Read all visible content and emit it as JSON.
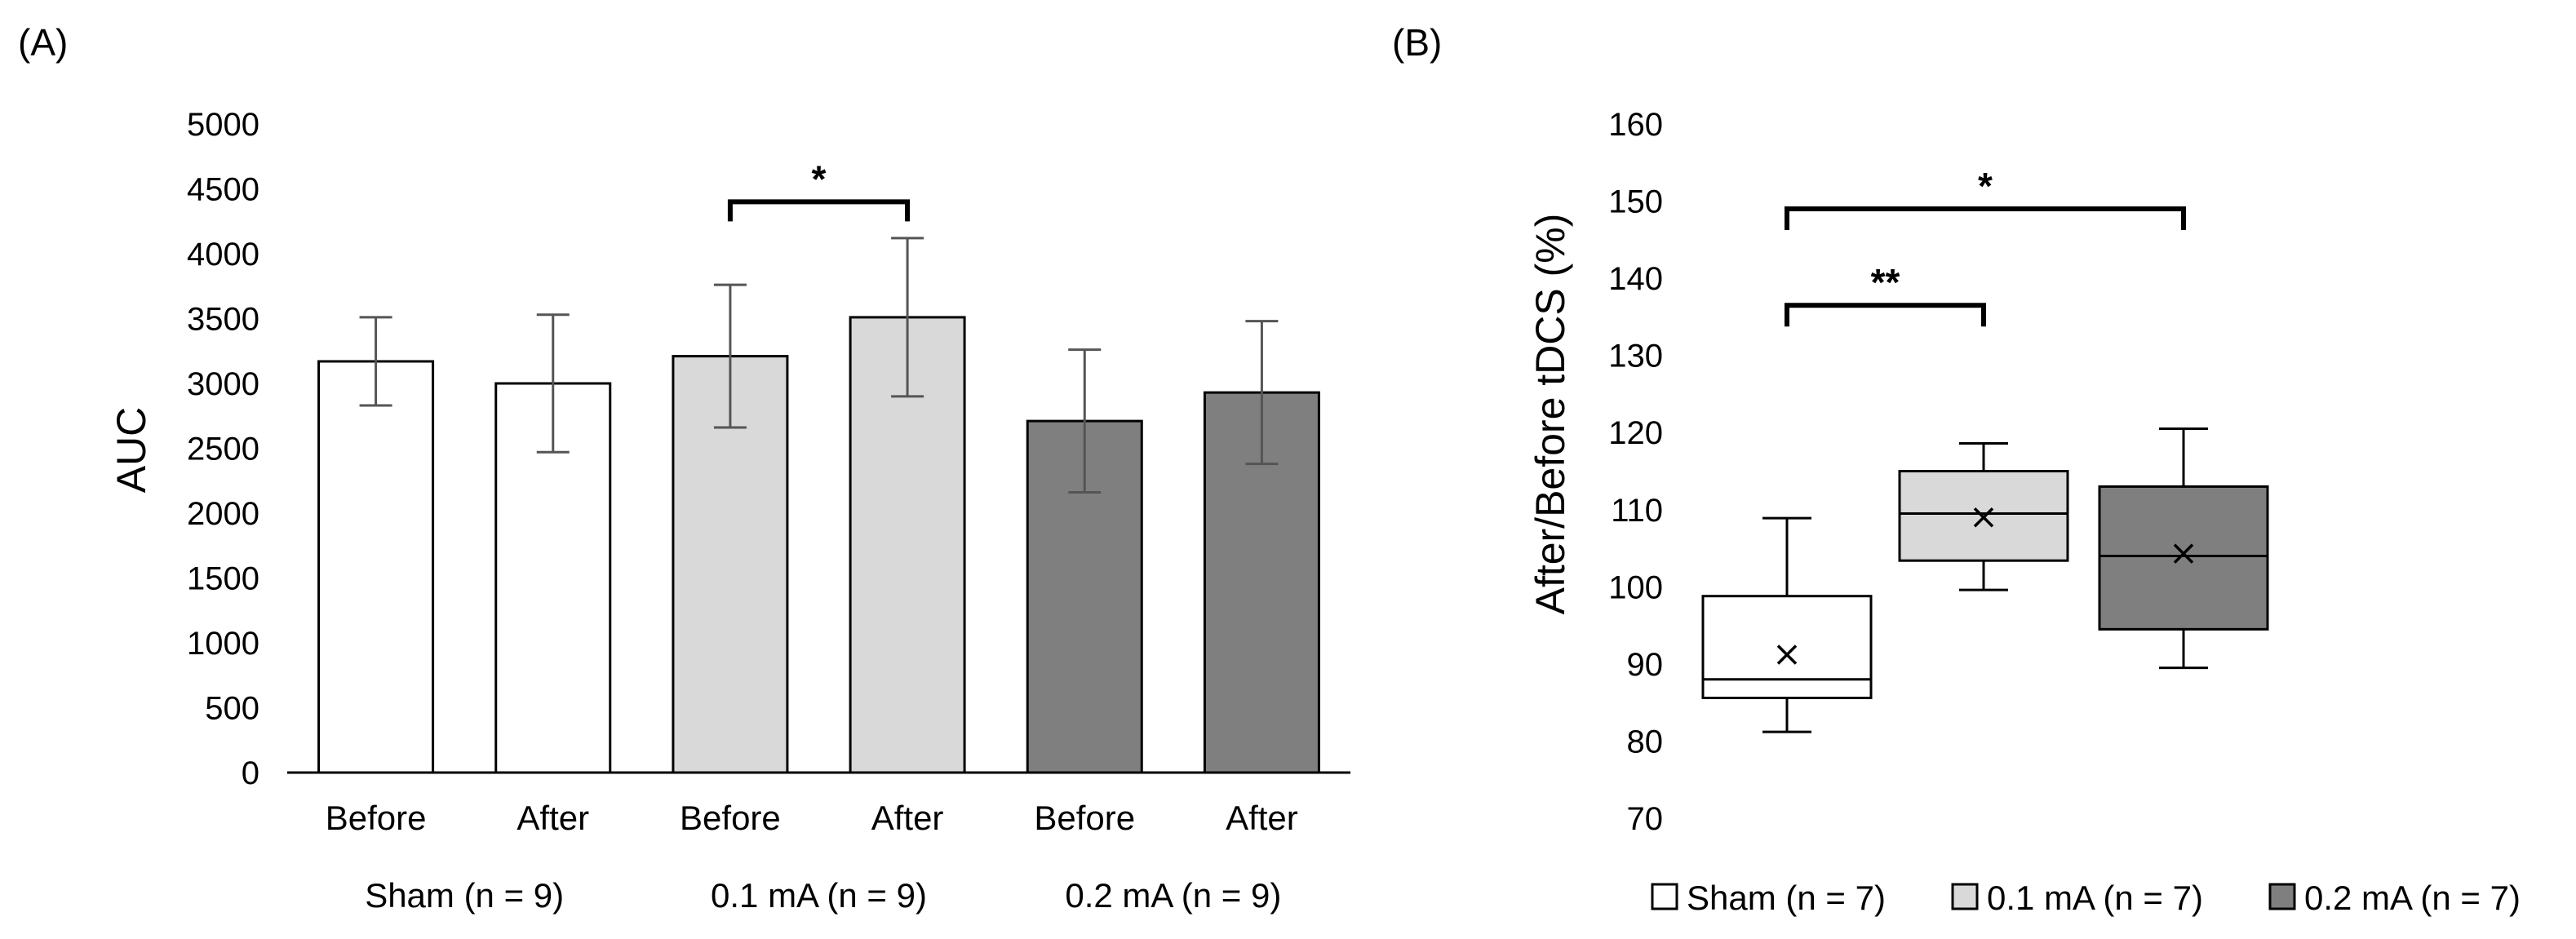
{
  "chart_data": [
    {
      "type": "bar",
      "panel_label": "(A)",
      "ylabel": "AUC",
      "ylim": [
        0,
        5000
      ],
      "yticks": [
        0,
        500,
        1000,
        1500,
        2000,
        2500,
        3000,
        3500,
        4000,
        4500,
        5000
      ],
      "ytick_labels": [
        "0",
        "500",
        "1000",
        "1500",
        "2000",
        "2500",
        "3000",
        "3500",
        "4000",
        "4500",
        "5000"
      ],
      "categories": [
        "Before",
        "After",
        "Before",
        "After",
        "Before",
        "After"
      ],
      "values": [
        3170,
        3000,
        3210,
        3510,
        2710,
        2930
      ],
      "errors": [
        340,
        530,
        550,
        610,
        550,
        550
      ],
      "bar_colors": [
        "#ffffff",
        "#ffffff",
        "#d9d9d9",
        "#d9d9d9",
        "#7f7f7f",
        "#7f7f7f"
      ],
      "groups": [
        {
          "label": "Sham (n = 9)",
          "bars": [
            0,
            1
          ]
        },
        {
          "label": "0.1 mA (n = 9)",
          "bars": [
            2,
            3
          ]
        },
        {
          "label": "0.2 mA (n = 9)",
          "bars": [
            4,
            5
          ]
        }
      ],
      "significance": [
        {
          "from": 2,
          "to": 3,
          "y": 4400,
          "label": "*"
        }
      ]
    },
    {
      "type": "box",
      "panel_label": "(B)",
      "ylabel": "After/Before tDCS (%)",
      "ylim": [
        70,
        160
      ],
      "yticks": [
        70,
        80,
        90,
        100,
        110,
        120,
        130,
        140,
        150,
        160
      ],
      "ytick_labels": [
        "70",
        "80",
        "90",
        "100",
        "110",
        "120",
        "130",
        "140",
        "150",
        "160"
      ],
      "series": [
        {
          "name": "Sham (n = 7)",
          "min": 81.2,
          "q1": 85.6,
          "median": 88.0,
          "q3": 98.8,
          "max": 108.9,
          "mean": 91.2,
          "color": "#ffffff"
        },
        {
          "name": "0.1 mA (n = 7)",
          "min": 99.6,
          "q1": 103.4,
          "median": 109.5,
          "q3": 115.0,
          "max": 118.6,
          "mean": 109.0,
          "color": "#d9d9d9"
        },
        {
          "name": "0.2 mA (n = 7)",
          "min": 89.5,
          "q1": 94.5,
          "median": 104.0,
          "q3": 113.0,
          "max": 120.5,
          "mean": 104.3,
          "color": "#7f7f7f"
        }
      ],
      "significance": [
        {
          "from": 0,
          "to": 1,
          "y": 136.5,
          "label": "**"
        },
        {
          "from": 0,
          "to": 2,
          "y": 149.0,
          "label": "*"
        }
      ],
      "legend": [
        "Sham (n = 7)",
        "0.1 mA (n = 7)",
        "0.2 mA (n = 7)"
      ]
    }
  ]
}
